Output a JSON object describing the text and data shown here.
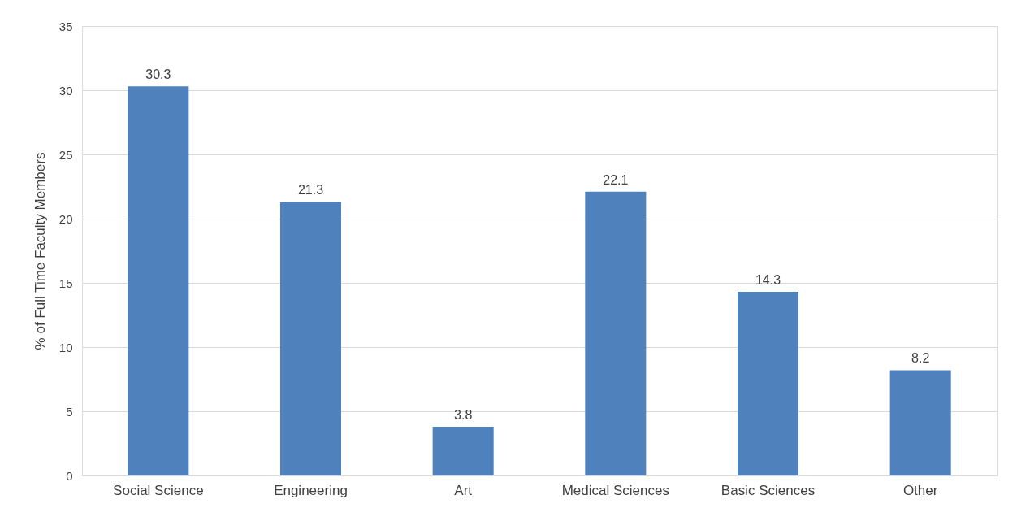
{
  "chart_data": {
    "type": "bar",
    "ylabel": "% of Full Time Faculty Members",
    "categories": [
      "Social Science",
      "Engineering",
      "Art",
      "Medical Sciences",
      "Basic Sciences",
      "Other"
    ],
    "values": [
      30.3,
      21.3,
      3.8,
      22.1,
      14.3,
      8.2
    ],
    "color": "#4f81bd",
    "ylim": [
      0,
      35
    ],
    "yticks": [
      0,
      5,
      10,
      15,
      20,
      25,
      30,
      35
    ],
    "grid": "y",
    "data_labels": true
  }
}
